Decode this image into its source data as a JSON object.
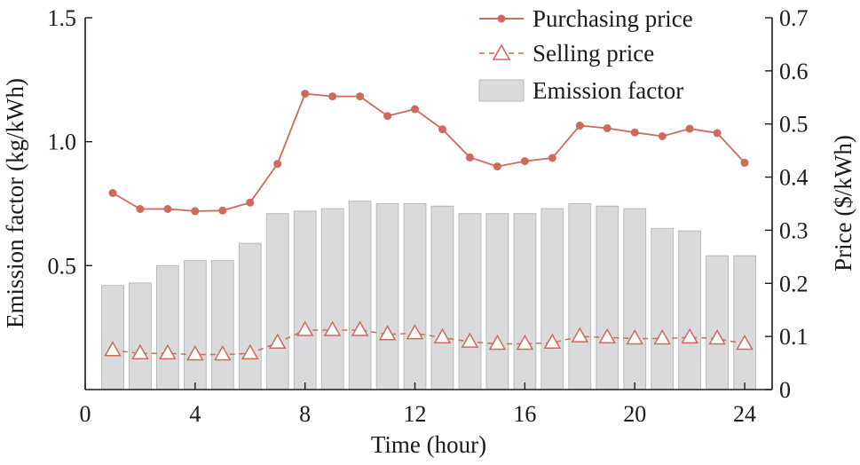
{
  "chart_data": {
    "type": "bar",
    "title": "",
    "xlabel": "Time (hour)",
    "ylabel_left": "Emission factor (kg/kWh)",
    "ylabel_right": "Price ($/kWh)",
    "xlim": [
      0,
      25
    ],
    "ylim_left": [
      0,
      1.5
    ],
    "ylim_right": [
      0,
      0.7
    ],
    "x_ticks": [
      0,
      4,
      8,
      12,
      16,
      20,
      24
    ],
    "x_tick_labels": [
      "0",
      "4",
      "8",
      "12",
      "16",
      "20",
      "24"
    ],
    "y_left_ticks": [
      0.5,
      1.0,
      1.5
    ],
    "y_left_tick_labels": [
      "0.5",
      "1.0",
      "1.5"
    ],
    "y_right_ticks": [
      0,
      0.1,
      0.2,
      0.3,
      0.4,
      0.5,
      0.6,
      0.7
    ],
    "y_right_tick_labels": [
      "0",
      "0.1",
      "0.2",
      "0.3",
      "0.4",
      "0.5",
      "0.6",
      "0.7"
    ],
    "grid": false,
    "legend_position": "top-right",
    "x": [
      1,
      2,
      3,
      4,
      5,
      6,
      7,
      8,
      9,
      10,
      11,
      12,
      13,
      14,
      15,
      16,
      17,
      18,
      19,
      20,
      21,
      22,
      23,
      24
    ],
    "series": [
      {
        "name": "Purchasing price",
        "type": "line",
        "axis": "right",
        "marker": "circle",
        "color": "#cd6a5c",
        "values": [
          0.37,
          0.34,
          0.34,
          0.336,
          0.337,
          0.352,
          0.425,
          0.557,
          0.552,
          0.552,
          0.515,
          0.528,
          0.49,
          0.437,
          0.42,
          0.43,
          0.436,
          0.497,
          0.492,
          0.484,
          0.477,
          0.491,
          0.483,
          0.427
        ]
      },
      {
        "name": "Selling price",
        "type": "line",
        "axis": "right",
        "marker": "triangle",
        "dashed": true,
        "color": "#cd6a5c",
        "values": [
          0.074,
          0.068,
          0.068,
          0.066,
          0.066,
          0.068,
          0.088,
          0.112,
          0.112,
          0.112,
          0.104,
          0.106,
          0.098,
          0.09,
          0.086,
          0.086,
          0.088,
          0.1,
          0.098,
          0.096,
          0.096,
          0.098,
          0.096,
          0.086
        ]
      },
      {
        "name": "Emission factor",
        "type": "bar",
        "axis": "left",
        "color": "#d9dadb",
        "edge_color": "#b9babb",
        "values": [
          0.42,
          0.43,
          0.5,
          0.52,
          0.52,
          0.59,
          0.71,
          0.72,
          0.73,
          0.76,
          0.75,
          0.75,
          0.74,
          0.71,
          0.71,
          0.71,
          0.73,
          0.75,
          0.74,
          0.73,
          0.65,
          0.64,
          0.54,
          0.54
        ]
      }
    ]
  }
}
